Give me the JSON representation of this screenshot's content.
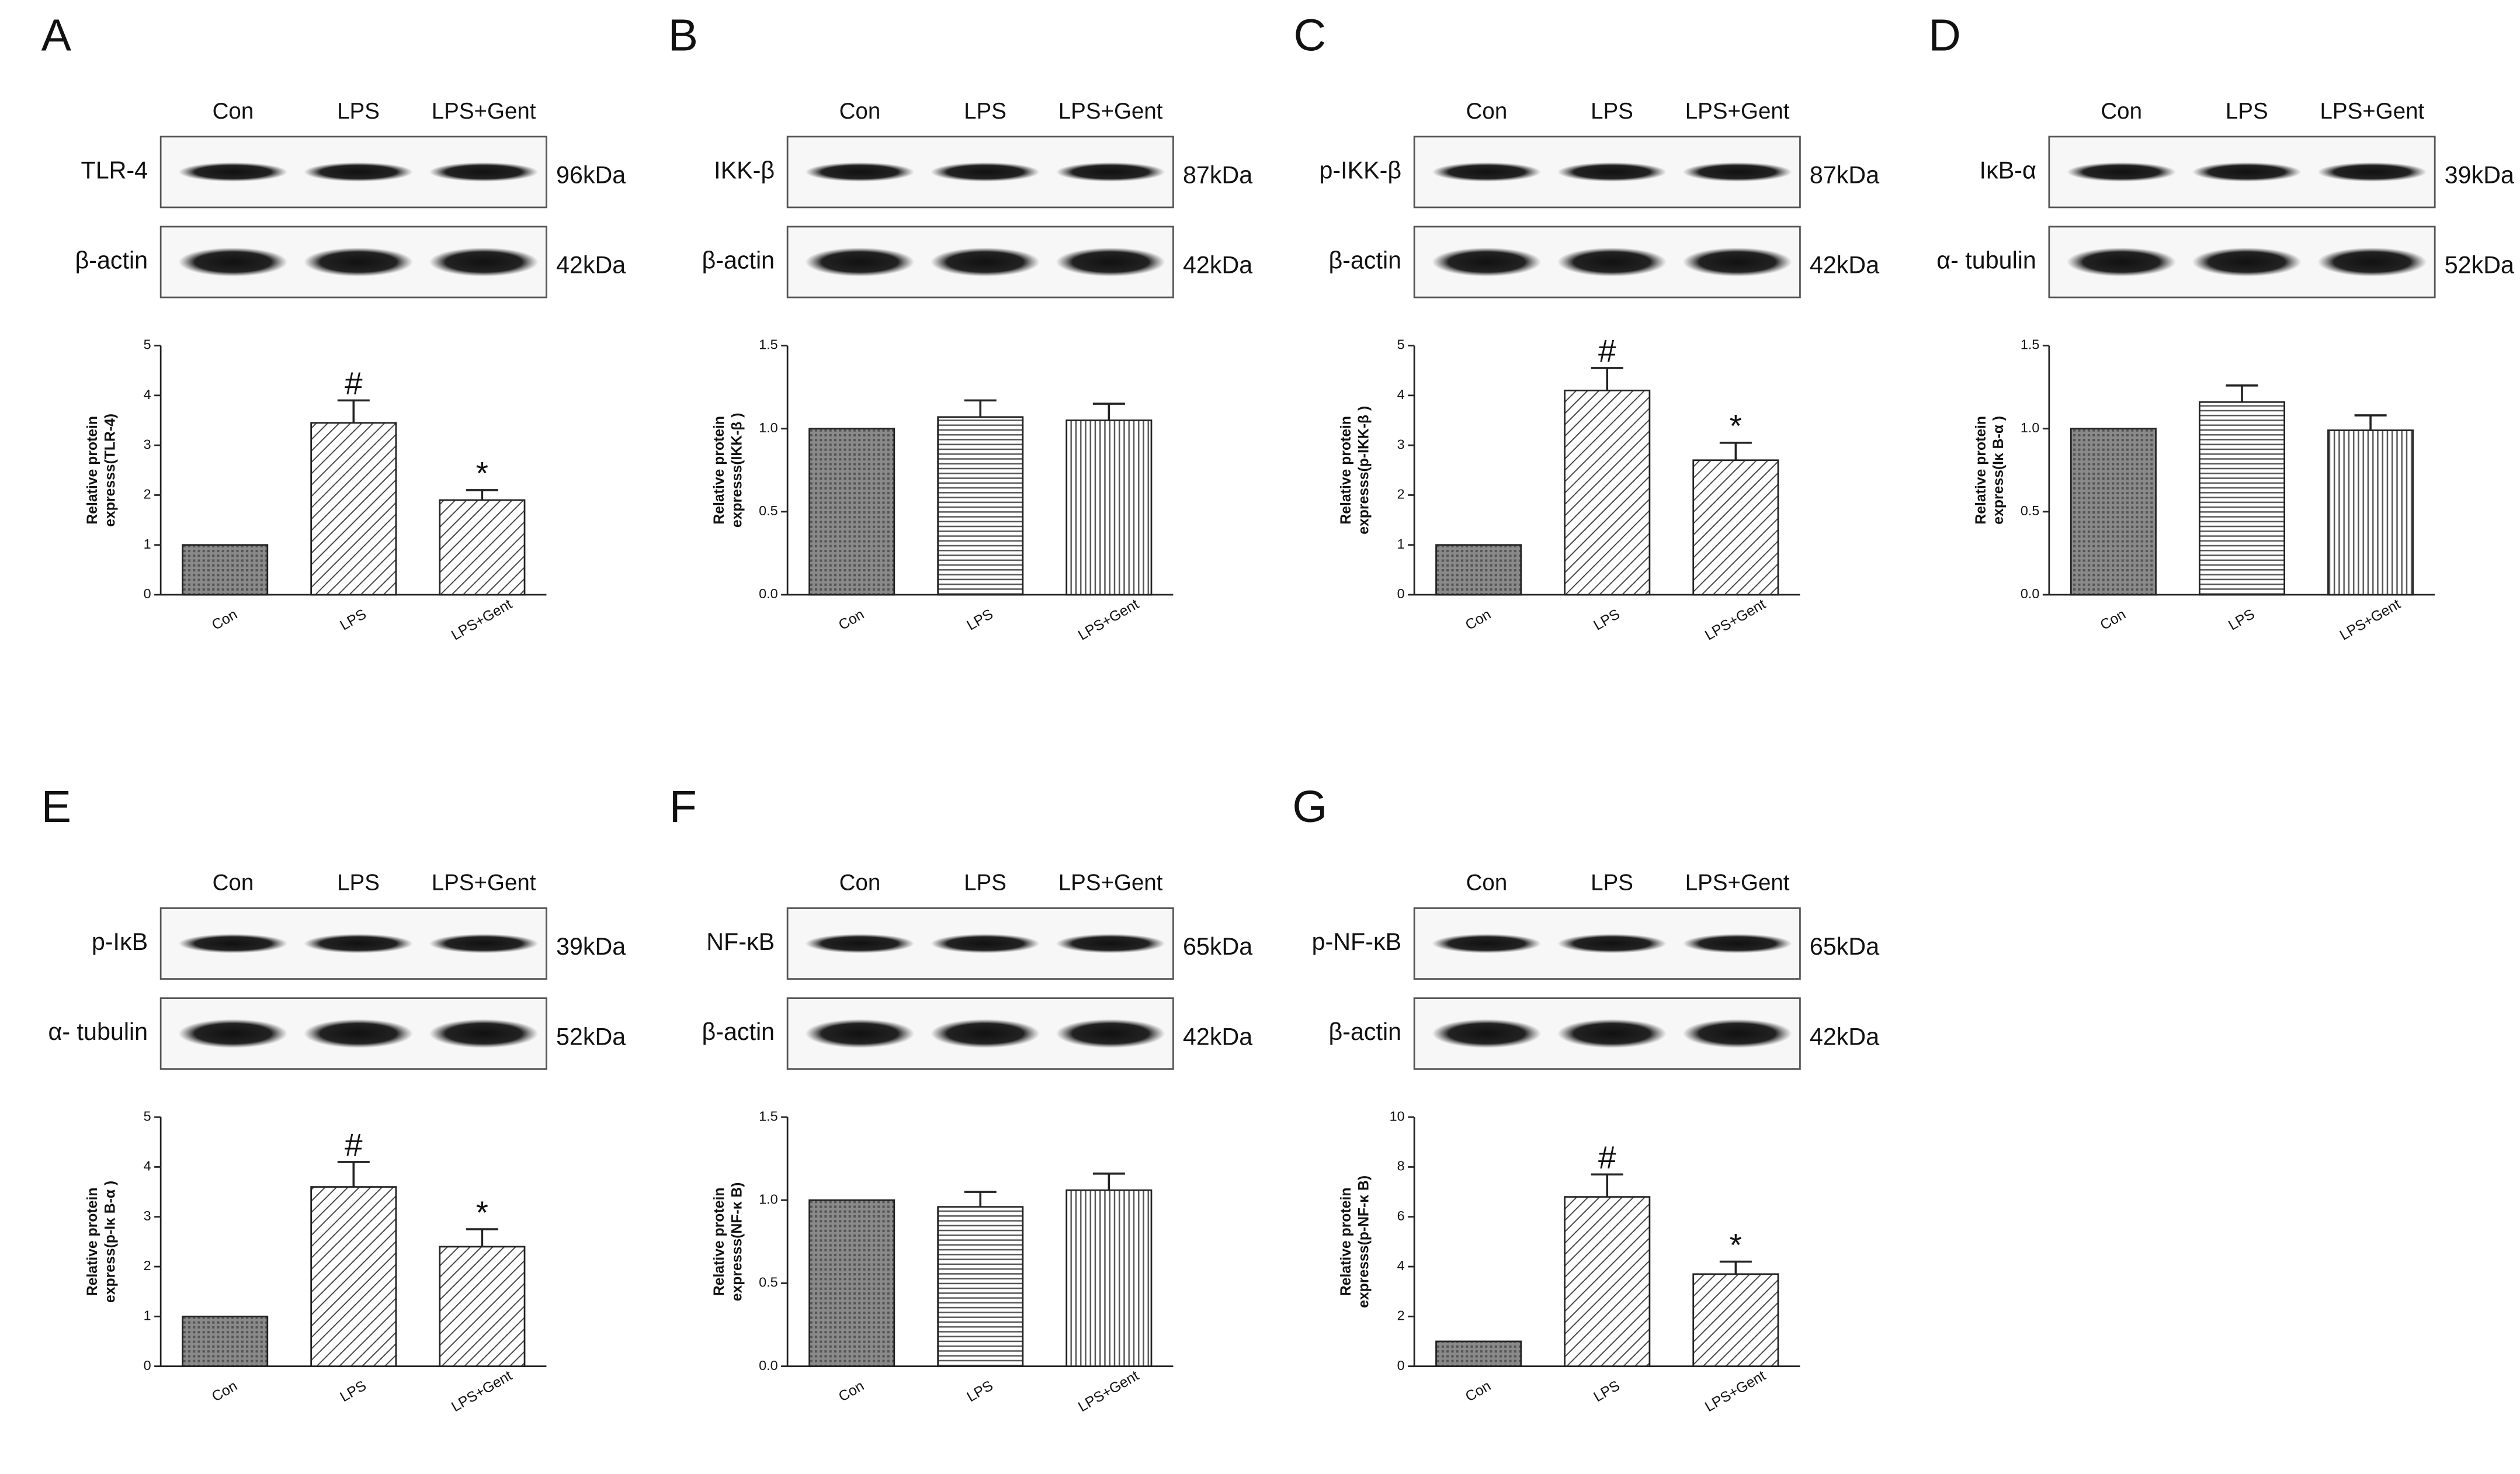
{
  "chart_data": [
    {
      "type": "bar",
      "panel": "A",
      "blot": {
        "lanes": [
          "Con",
          "LPS",
          "LPS+Gent"
        ],
        "rows": [
          {
            "protein": "TLR-4",
            "kda": "96kDa"
          },
          {
            "protein": "β-actin",
            "kda": "42kDa"
          }
        ]
      },
      "ylabel": [
        "Relative protein",
        "expresss(TLR-4)"
      ],
      "categories": [
        "Con",
        "LPS",
        "LPS+Gent"
      ],
      "values": [
        1,
        3.45,
        1.9
      ],
      "errors": [
        0,
        0.45,
        0.2
      ],
      "markers": [
        null,
        "#",
        "*"
      ],
      "patterns": [
        "dots",
        "diag",
        "diag"
      ],
      "ylim": [
        0,
        5
      ],
      "yticks": [
        0,
        1,
        2,
        3,
        4,
        5
      ]
    },
    {
      "type": "bar",
      "panel": "B",
      "blot": {
        "lanes": [
          "Con",
          "LPS",
          "LPS+Gent"
        ],
        "rows": [
          {
            "protein": "IKK-β",
            "kda": "87kDa"
          },
          {
            "protein": "β-actin",
            "kda": "42kDa"
          }
        ]
      },
      "ylabel": [
        "Relative protein",
        "expresss(IKK-β )"
      ],
      "categories": [
        "Con",
        "LPS",
        "LPS+Gent"
      ],
      "values": [
        1.0,
        1.07,
        1.05
      ],
      "errors": [
        0,
        0.1,
        0.1
      ],
      "patterns": [
        "dots",
        "horiz",
        "vert"
      ],
      "ylim": [
        0,
        1.5
      ],
      "yticks": [
        {
          "value": 0,
          "label": "0.0"
        },
        0.5,
        {
          "value": 1,
          "label": "1.0"
        },
        1.5
      ]
    },
    {
      "type": "bar",
      "panel": "C",
      "blot": {
        "lanes": [
          "Con",
          "LPS",
          "LPS+Gent"
        ],
        "rows": [
          {
            "protein": "p-IKK-β",
            "kda": "87kDa"
          },
          {
            "protein": "β-actin",
            "kda": "42kDa"
          }
        ]
      },
      "ylabel": [
        "Relative protein",
        "expresss(p-IKK-β )"
      ],
      "categories": [
        "Con",
        "LPS",
        "LPS+Gent"
      ],
      "values": [
        1,
        4.1,
        2.7
      ],
      "errors": [
        0,
        0.45,
        0.35
      ],
      "markers": [
        null,
        "#",
        "*"
      ],
      "patterns": [
        "dots",
        "diag",
        "diag"
      ],
      "ylim": [
        0,
        5
      ],
      "yticks": [
        0,
        1,
        2,
        3,
        4,
        5
      ]
    },
    {
      "type": "bar",
      "panel": "D",
      "blot": {
        "lanes": [
          "Con",
          "LPS",
          "LPS+Gent"
        ],
        "rows": [
          {
            "protein": "IκB-α",
            "kda": "39kDa"
          },
          {
            "protein": "α- tubulin",
            "kda": "52kDa"
          }
        ]
      },
      "ylabel": [
        "Relative protein",
        "express(Iκ B-α )"
      ],
      "categories": [
        "Con",
        "LPS",
        "LPS+Gent"
      ],
      "values": [
        1.0,
        1.16,
        0.99
      ],
      "errors": [
        0,
        0.1,
        0.09
      ],
      "patterns": [
        "dots",
        "horiz",
        "vert"
      ],
      "ylim": [
        0,
        1.5
      ],
      "yticks": [
        {
          "value": 0,
          "label": "0.0"
        },
        0.5,
        {
          "value": 1,
          "label": "1.0"
        },
        1.5
      ]
    },
    {
      "type": "bar",
      "panel": "E",
      "blot": {
        "lanes": [
          "Con",
          "LPS",
          "LPS+Gent"
        ],
        "rows": [
          {
            "protein": "p-IκB",
            "kda": "39kDa"
          },
          {
            "protein": "α- tubulin",
            "kda": "52kDa"
          }
        ]
      },
      "ylabel": [
        "Relative protein",
        "express(p-Iκ B-α )"
      ],
      "categories": [
        "Con",
        "LPS",
        "LPS+Gent"
      ],
      "values": [
        1,
        3.6,
        2.4
      ],
      "errors": [
        0,
        0.5,
        0.35
      ],
      "markers": [
        null,
        "#",
        "*"
      ],
      "patterns": [
        "dots",
        "diag",
        "diag"
      ],
      "ylim": [
        0,
        5
      ],
      "yticks": [
        0,
        1,
        2,
        3,
        4,
        5
      ]
    },
    {
      "type": "bar",
      "panel": "F",
      "blot": {
        "lanes": [
          "Con",
          "LPS",
          "LPS+Gent"
        ],
        "rows": [
          {
            "protein": "NF-κB",
            "kda": "65kDa"
          },
          {
            "protein": "β-actin",
            "kda": "42kDa"
          }
        ]
      },
      "ylabel": [
        "Relative protein",
        "expresss(NF-κ B)"
      ],
      "categories": [
        "Con",
        "LPS",
        "LPS+Gent"
      ],
      "values": [
        1.0,
        0.96,
        1.06
      ],
      "errors": [
        0,
        0.09,
        0.1
      ],
      "patterns": [
        "dots",
        "horiz",
        "vert"
      ],
      "ylim": [
        0,
        1.5
      ],
      "yticks": [
        {
          "value": 0,
          "label": "0.0"
        },
        0.5,
        {
          "value": 1,
          "label": "1.0"
        },
        1.5
      ]
    },
    {
      "type": "bar",
      "panel": "G",
      "blot": {
        "lanes": [
          "Con",
          "LPS",
          "LPS+Gent"
        ],
        "rows": [
          {
            "protein": "p-NF-κB",
            "kda": "65kDa"
          },
          {
            "protein": "β-actin",
            "kda": "42kDa"
          }
        ]
      },
      "ylabel": [
        "Relative protein",
        "expresss(p-NF-κ B)"
      ],
      "categories": [
        "Con",
        "LPS",
        "LPS+Gent"
      ],
      "values": [
        1,
        6.8,
        3.7
      ],
      "errors": [
        0,
        0.9,
        0.5
      ],
      "markers": [
        null,
        "#",
        "*"
      ],
      "patterns": [
        "dots",
        "diag",
        "diag"
      ],
      "ylim": [
        0,
        10
      ],
      "yticks": [
        0,
        2,
        4,
        6,
        8,
        10
      ]
    }
  ]
}
